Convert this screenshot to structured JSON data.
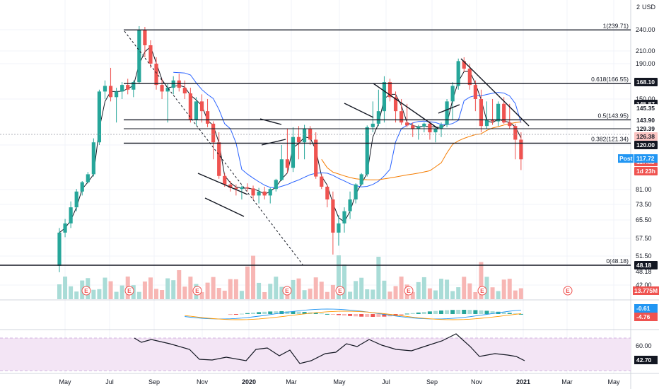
{
  "currency": "USD",
  "price_scale_top": "2",
  "x_labels": [
    "May",
    "Jul",
    "Sep",
    "Nov",
    "2020",
    "Mar",
    "May",
    "Jul",
    "Sep",
    "Nov",
    "2021",
    "Mar",
    "May"
  ],
  "price_ticks": [
    "240.00",
    "210.00",
    "190.00",
    "150.00",
    "120.00",
    "81.00",
    "73.50",
    "65.50",
    "57.50",
    "51.50",
    "48.18",
    "42.00"
  ],
  "rsi_ticks": [
    "60.00"
  ],
  "fib_levels": [
    {
      "label": "1(239.71)",
      "value": 239.71
    },
    {
      "label": "0.618(166.55)",
      "value": 166.55
    },
    {
      "label": "0.5(143.95)",
      "value": 143.95
    },
    {
      "label": "0.382(121.34)",
      "value": 121.34
    },
    {
      "label": "0(48.18)",
      "value": 48.18
    }
  ],
  "price_labels": [
    {
      "text": "168.10",
      "bg": "#131722",
      "color": "#ffffff",
      "value": 168.1
    },
    {
      "text": "145.87",
      "bg": "#131722",
      "color": "#ffffff",
      "value": 145.87
    },
    {
      "text": "145.35",
      "bg": "#ffffff",
      "color": "#131722",
      "value": 145.35
    },
    {
      "text": "143.90",
      "bg": "#ffffff",
      "color": "#131722",
      "value": 143.9
    },
    {
      "text": "129.39",
      "bg": "#ffffff",
      "color": "#131722",
      "value": 129.39
    },
    {
      "text": "126.38",
      "bg": "#fbc4c2",
      "color": "#131722",
      "value": 126.38
    },
    {
      "text": "120.00",
      "bg": "#131722",
      "color": "#ffffff",
      "value": 120.0
    },
    {
      "text": "117.63",
      "bg": "#ef5350",
      "color": "#ffffff",
      "value": 117.63
    },
    {
      "text": "1d 23h",
      "bg": "#ef5350",
      "color": "#ffffff",
      "value": 113.5
    },
    {
      "text": "48.18",
      "bg": "#131722",
      "color": "#ffffff",
      "value": 48.18
    }
  ],
  "post_label": {
    "tag": "Post",
    "text": "117.72",
    "bg": "#2196f3",
    "value": 117.72
  },
  "volume_label": {
    "text": "13.775M",
    "bg": "#ef5350"
  },
  "macd_labels": [
    {
      "text": "-0.61",
      "bg": "#2196f3"
    },
    {
      "text": "-4.76",
      "bg": "#ef5350"
    }
  ],
  "rsi_label": {
    "text": "42.70",
    "bg": "#131722"
  },
  "earnings_marker": "E",
  "colors": {
    "up": "#26a69a",
    "down": "#ef5350",
    "ma_fast": "#131722",
    "ma_mid": "#2962ff",
    "ma_slow": "#f57c00",
    "rsi_bg": "#f3e5f5",
    "rsi_band": "#d1b3e0",
    "macd_line": "#2196f3",
    "signal_line": "#ff9800"
  },
  "chart_data": {
    "type": "candlestick",
    "title": "",
    "price_unit": "USD",
    "x_axis_labels": [
      "May",
      "Jul",
      "Sep",
      "Nov",
      "2020",
      "Mar",
      "May",
      "Jul",
      "Sep",
      "Nov",
      "2021",
      "Mar",
      "May"
    ],
    "y_ticks": [
      240,
      210,
      190,
      150,
      120,
      81,
      73.5,
      65.5,
      57.5,
      51.5,
      42
    ],
    "weekly_candles": [
      [
        48,
        62,
        46,
        60
      ],
      [
        60,
        66,
        58,
        64
      ],
      [
        64,
        75,
        62,
        72
      ],
      [
        72,
        82,
        70,
        80
      ],
      [
        80,
        96,
        78,
        94
      ],
      [
        94,
        112,
        92,
        108
      ],
      [
        108,
        125,
        104,
        122
      ],
      [
        122,
        160,
        120,
        158
      ],
      [
        158,
        170,
        150,
        164
      ],
      [
        164,
        185,
        148,
        152
      ],
      [
        152,
        162,
        140,
        158
      ],
      [
        158,
        168,
        150,
        165
      ],
      [
        165,
        172,
        155,
        160
      ],
      [
        160,
        170,
        152,
        168
      ],
      [
        168,
        245,
        166,
        240
      ],
      [
        240,
        244,
        200,
        218
      ],
      [
        218,
        225,
        185,
        190
      ],
      [
        190,
        200,
        160,
        165
      ],
      [
        165,
        172,
        150,
        158
      ],
      [
        158,
        166,
        140,
        162
      ],
      [
        162,
        175,
        155,
        170
      ],
      [
        170,
        178,
        158,
        162
      ],
      [
        162,
        170,
        150,
        156
      ],
      [
        156,
        162,
        140,
        144
      ],
      [
        144,
        152,
        135,
        148
      ],
      [
        148,
        155,
        140,
        145
      ],
      [
        145,
        150,
        132,
        138
      ],
      [
        138,
        142,
        118,
        122
      ],
      [
        122,
        128,
        100,
        105
      ],
      [
        105,
        110,
        86,
        90
      ],
      [
        90,
        96,
        80,
        84
      ],
      [
        84,
        90,
        78,
        82
      ],
      [
        82,
        88,
        76,
        85
      ],
      [
        85,
        92,
        80,
        83
      ],
      [
        83,
        88,
        76,
        78
      ],
      [
        78,
        84,
        74,
        80
      ],
      [
        80,
        86,
        76,
        78
      ],
      [
        78,
        84,
        74,
        82
      ],
      [
        82,
        100,
        80,
        98
      ],
      [
        98,
        120,
        96,
        118
      ],
      [
        118,
        130,
        110,
        115
      ],
      [
        115,
        132,
        112,
        126
      ],
      [
        126,
        134,
        118,
        122
      ],
      [
        122,
        136,
        118,
        130
      ],
      [
        130,
        134,
        120,
        124
      ],
      [
        124,
        128,
        100,
        104
      ],
      [
        104,
        108,
        82,
        86
      ],
      [
        86,
        90,
        72,
        76
      ],
      [
        76,
        80,
        52,
        60
      ],
      [
        60,
        68,
        55,
        64
      ],
      [
        64,
        72,
        60,
        70
      ],
      [
        70,
        80,
        66,
        76
      ],
      [
        76,
        92,
        74,
        90
      ],
      [
        90,
        110,
        88,
        108
      ],
      [
        108,
        135,
        104,
        132
      ],
      [
        132,
        148,
        128,
        138
      ],
      [
        138,
        160,
        134,
        145
      ],
      [
        145,
        175,
        140,
        168
      ],
      [
        168,
        172,
        148,
        152
      ],
      [
        152,
        158,
        140,
        145
      ],
      [
        145,
        150,
        136,
        140
      ],
      [
        140,
        146,
        132,
        135
      ],
      [
        135,
        140,
        126,
        130
      ],
      [
        130,
        136,
        124,
        133
      ],
      [
        133,
        140,
        128,
        138
      ],
      [
        138,
        142,
        124,
        128
      ],
      [
        128,
        134,
        122,
        130
      ],
      [
        130,
        140,
        126,
        136
      ],
      [
        136,
        150,
        132,
        148
      ],
      [
        148,
        168,
        144,
        164
      ],
      [
        164,
        198,
        160,
        194
      ],
      [
        194,
        200,
        180,
        184
      ],
      [
        184,
        190,
        160,
        165
      ],
      [
        165,
        170,
        145,
        150
      ],
      [
        150,
        160,
        128,
        134
      ],
      [
        134,
        148,
        130,
        144
      ],
      [
        144,
        150,
        136,
        142
      ],
      [
        142,
        148,
        134,
        146
      ],
      [
        146,
        152,
        138,
        140
      ],
      [
        140,
        146,
        130,
        134
      ],
      [
        134,
        138,
        118,
        124
      ],
      [
        124,
        128,
        114,
        118
      ]
    ],
    "fibonacci": {
      "1": 239.71,
      "0.618": 166.55,
      "0.5": 143.95,
      "0.382": 121.34,
      "0": 48.18
    },
    "current_price": 117.63,
    "post_market_price": 117.72,
    "volume_last": "13.775M",
    "macd": {
      "macd": -0.61,
      "signal": -4.76
    },
    "rsi": {
      "last": 42.7,
      "band": [
        30,
        70
      ]
    },
    "grid": true
  }
}
